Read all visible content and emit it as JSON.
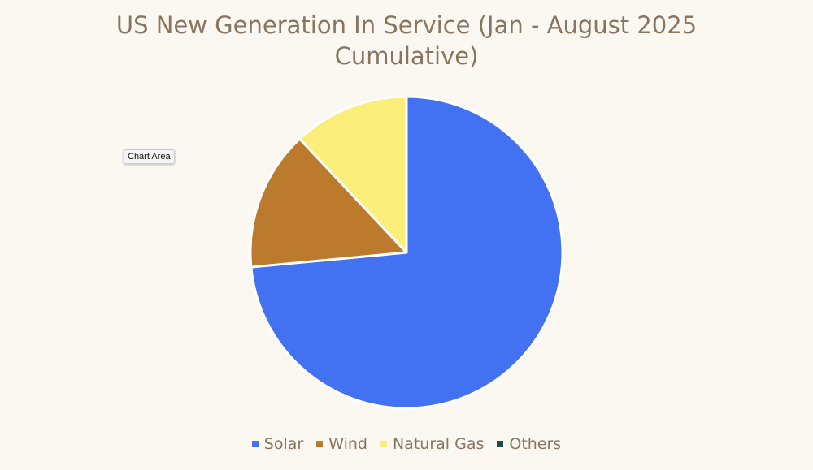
{
  "chart_data": {
    "type": "pie",
    "title": "US New Generation In Service (Jan - August 2025 Cumulative)",
    "categories": [
      "Solar",
      "Wind",
      "Natural Gas",
      "Others"
    ],
    "values": [
      73.5,
      14.5,
      12.0,
      0.0
    ],
    "colors": [
      "#4272f1",
      "#bb7a2c",
      "#fcee7a",
      "#1f4e4a"
    ],
    "legend_position": "bottom",
    "start_angle_degrees": 0,
    "direction": "clockwise"
  },
  "tooltip": {
    "label": "Chart Area"
  }
}
